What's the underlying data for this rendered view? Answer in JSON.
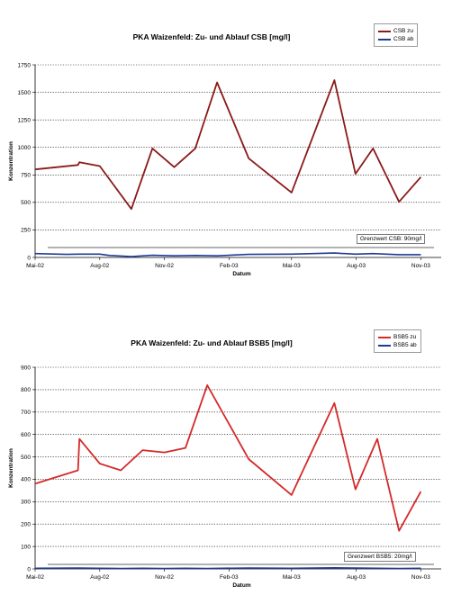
{
  "chart_data": [
    {
      "type": "line",
      "title": "PKA Waizenfeld: Zu- und Ablauf CSB [mg/l]",
      "xlabel": "Datum",
      "ylabel": "Konzentration",
      "ylim": [
        0,
        1750
      ],
      "yticks": [
        0,
        250,
        500,
        750,
        1000,
        1250,
        1500,
        1750
      ],
      "xlim": [
        "2002-05-01",
        "2003-11-30"
      ],
      "xticks": [
        {
          "label": "Mai-02",
          "date": "2002-05-01"
        },
        {
          "label": "Aug-02",
          "date": "2002-08-01"
        },
        {
          "label": "Nov-02",
          "date": "2002-11-01"
        },
        {
          "label": "Feb-03",
          "date": "2003-02-01"
        },
        {
          "label": "Mai-03",
          "date": "2003-05-01"
        },
        {
          "label": "Aug-03",
          "date": "2003-08-01"
        },
        {
          "label": "Nov-03",
          "date": "2003-11-01"
        }
      ],
      "grid": true,
      "legend_position": "top-right",
      "annotation": {
        "text": "Grenzwert CSB: 90mg/l",
        "value": 90
      },
      "series": [
        {
          "name": "CSB zu",
          "color": "#8b1a1a",
          "points": [
            [
              "2002-05-01",
              800
            ],
            [
              "2002-07-01",
              840
            ],
            [
              "2002-07-03",
              865
            ],
            [
              "2002-08-01",
              830
            ],
            [
              "2002-09-15",
              440
            ],
            [
              "2002-10-15",
              990
            ],
            [
              "2002-11-15",
              820
            ],
            [
              "2002-12-15",
              990
            ],
            [
              "2003-01-15",
              1590
            ],
            [
              "2003-03-01",
              900
            ],
            [
              "2003-05-01",
              590
            ],
            [
              "2003-07-01",
              1610
            ],
            [
              "2003-07-31",
              760
            ],
            [
              "2003-08-25",
              990
            ],
            [
              "2003-10-01",
              505
            ],
            [
              "2003-11-01",
              730
            ]
          ]
        },
        {
          "name": "CSB ab",
          "color": "#1f3a93",
          "points": [
            [
              "2002-05-01",
              35
            ],
            [
              "2002-06-15",
              28
            ],
            [
              "2002-07-03",
              30
            ],
            [
              "2002-08-01",
              30
            ],
            [
              "2002-08-15",
              18
            ],
            [
              "2002-09-15",
              8
            ],
            [
              "2002-10-15",
              20
            ],
            [
              "2002-11-15",
              15
            ],
            [
              "2002-12-15",
              18
            ],
            [
              "2003-01-15",
              15
            ],
            [
              "2003-03-01",
              28
            ],
            [
              "2003-05-01",
              30
            ],
            [
              "2003-07-01",
              40
            ],
            [
              "2003-07-31",
              30
            ],
            [
              "2003-08-25",
              35
            ],
            [
              "2003-10-01",
              25
            ],
            [
              "2003-11-01",
              25
            ]
          ]
        }
      ]
    },
    {
      "type": "line",
      "title": "PKA Waizenfeld: Zu- und Ablauf BSB5 [mg/l]",
      "xlabel": "Datum",
      "ylabel": "Konzentration",
      "ylim": [
        0,
        900
      ],
      "yticks": [
        0,
        100,
        200,
        300,
        400,
        500,
        600,
        700,
        800,
        900
      ],
      "xlim": [
        "2002-05-01",
        "2003-11-30"
      ],
      "xticks": [
        {
          "label": "Mai-02",
          "date": "2002-05-01"
        },
        {
          "label": "Aug-02",
          "date": "2002-08-01"
        },
        {
          "label": "Nov-02",
          "date": "2002-11-01"
        },
        {
          "label": "Feb-03",
          "date": "2003-02-01"
        },
        {
          "label": "Mai-03",
          "date": "2003-05-01"
        },
        {
          "label": "Aug-03",
          "date": "2003-08-01"
        },
        {
          "label": "Nov-03",
          "date": "2003-11-01"
        }
      ],
      "grid": true,
      "legend_position": "top-right",
      "annotation": {
        "text": "Grenzwert BSB5: 20mg/l",
        "value": 20
      },
      "series": [
        {
          "name": "BSB5 zu",
          "color": "#d42a2a",
          "points": [
            [
              "2002-05-01",
              380
            ],
            [
              "2002-07-01",
              440
            ],
            [
              "2002-07-03",
              580
            ],
            [
              "2002-08-01",
              470
            ],
            [
              "2002-08-31",
              440
            ],
            [
              "2002-10-01",
              530
            ],
            [
              "2002-11-01",
              520
            ],
            [
              "2002-12-01",
              540
            ],
            [
              "2003-01-01",
              820
            ],
            [
              "2003-03-01",
              490
            ],
            [
              "2003-05-01",
              330
            ],
            [
              "2003-07-01",
              740
            ],
            [
              "2003-07-31",
              355
            ],
            [
              "2003-08-31",
              580
            ],
            [
              "2003-10-01",
              170
            ],
            [
              "2003-11-01",
              345
            ]
          ]
        },
        {
          "name": "BSB5 ab",
          "color": "#1f3a93",
          "points": [
            [
              "2002-05-01",
              3
            ],
            [
              "2002-07-01",
              4
            ],
            [
              "2002-08-01",
              3
            ],
            [
              "2002-09-01",
              2
            ],
            [
              "2002-10-01",
              3
            ],
            [
              "2002-11-01",
              2
            ],
            [
              "2002-12-01",
              3
            ],
            [
              "2003-01-01",
              2
            ],
            [
              "2003-03-01",
              4
            ],
            [
              "2003-05-01",
              3
            ],
            [
              "2003-07-01",
              5
            ],
            [
              "2003-08-01",
              4
            ],
            [
              "2003-09-01",
              3
            ],
            [
              "2003-10-01",
              2
            ],
            [
              "2003-11-01",
              3
            ]
          ]
        }
      ]
    }
  ]
}
